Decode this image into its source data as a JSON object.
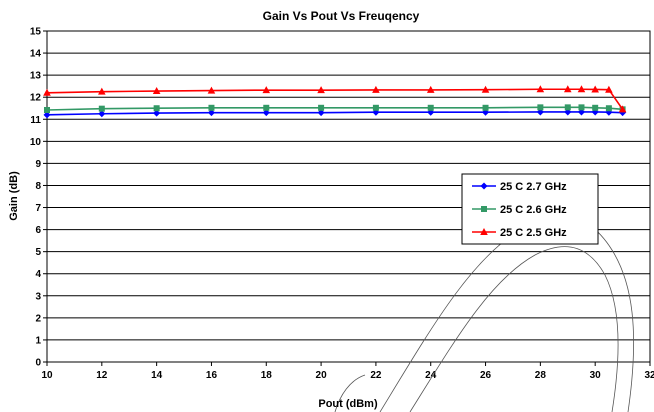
{
  "chart_data": {
    "type": "line",
    "title": "Gain Vs Pout Vs Freuqency",
    "xlabel": "Pout (dBm)",
    "ylabel": "Gain (dB)",
    "xlim": [
      10,
      32
    ],
    "ylim": [
      0,
      15
    ],
    "xticks": [
      10,
      12,
      14,
      16,
      18,
      20,
      22,
      24,
      26,
      28,
      30,
      32
    ],
    "yticks": [
      0,
      1,
      2,
      3,
      4,
      5,
      6,
      7,
      8,
      9,
      10,
      11,
      12,
      13,
      14,
      15
    ],
    "grid": "horizontal",
    "legend_position": "right",
    "x": [
      10,
      12,
      14,
      16,
      18,
      20,
      22,
      24,
      26,
      28,
      29,
      29.5,
      30,
      30.5,
      31
    ],
    "series": [
      {
        "name": "25 C 2.7 GHz",
        "color": "#0000ff",
        "marker": "diamond",
        "values": [
          11.2,
          11.25,
          11.28,
          11.3,
          11.3,
          11.3,
          11.32,
          11.32,
          11.32,
          11.33,
          11.33,
          11.33,
          11.33,
          11.32,
          11.3
        ]
      },
      {
        "name": "25 C 2.6 GHz",
        "color": "#339966",
        "marker": "square",
        "values": [
          11.42,
          11.48,
          11.5,
          11.52,
          11.52,
          11.52,
          11.52,
          11.52,
          11.52,
          11.54,
          11.54,
          11.54,
          11.52,
          11.5,
          11.45
        ]
      },
      {
        "name": "25 C 2.5 GHz",
        "color": "#ff0000",
        "marker": "triangle",
        "values": [
          12.2,
          12.25,
          12.28,
          12.3,
          12.32,
          12.32,
          12.33,
          12.33,
          12.34,
          12.36,
          12.36,
          12.36,
          12.35,
          12.34,
          11.45
        ]
      }
    ]
  }
}
